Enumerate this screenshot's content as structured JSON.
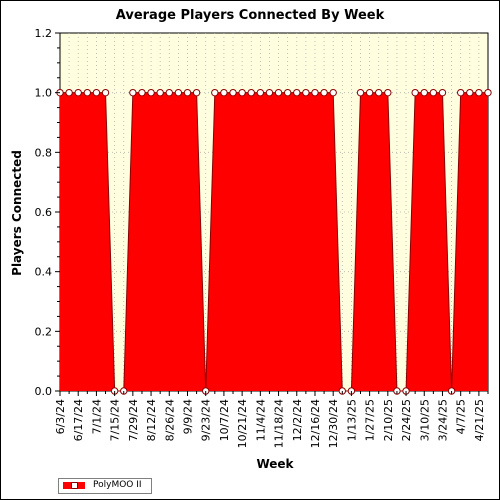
{
  "chart_data": {
    "type": "area",
    "title": "Average Players Connected By Week",
    "xlabel": "Week",
    "ylabel": "Players Connected",
    "ylim": [
      0,
      1.2
    ],
    "y_ticks": [
      "0.0",
      "0.2",
      "0.4",
      "0.6",
      "0.8",
      "1.0",
      "1.2"
    ],
    "x_tick_labels": [
      "6/3/24",
      "6/17/24",
      "7/1/24",
      "7/15/24",
      "7/29/24",
      "8/12/24",
      "8/26/24",
      "9/9/24",
      "9/23/24",
      "10/7/24",
      "10/21/24",
      "11/4/24",
      "11/18/24",
      "12/2/24",
      "12/16/24",
      "12/30/24",
      "1/13/25",
      "1/27/25",
      "2/10/25",
      "2/24/25",
      "3/10/25",
      "3/24/25",
      "4/7/25",
      "4/21/25"
    ],
    "grid": true,
    "legend_placement": "bottom-left",
    "background_color": "#ffffe0",
    "series": [
      {
        "name": "PolyMOO II",
        "color": "#ff0000",
        "line_color": "#8b0000",
        "x": [
          "6/3/24",
          "6/10/24",
          "6/17/24",
          "6/24/24",
          "7/1/24",
          "7/8/24",
          "7/15/24",
          "7/22/24",
          "7/29/24",
          "8/5/24",
          "8/12/24",
          "8/19/24",
          "8/26/24",
          "9/2/24",
          "9/9/24",
          "9/16/24",
          "9/23/24",
          "9/30/24",
          "10/7/24",
          "10/14/24",
          "10/21/24",
          "10/28/24",
          "11/4/24",
          "11/11/24",
          "11/18/24",
          "11/25/24",
          "12/2/24",
          "12/9/24",
          "12/16/24",
          "12/23/24",
          "12/30/24",
          "1/6/25",
          "1/13/25",
          "1/20/25",
          "1/27/25",
          "2/3/25",
          "2/10/25",
          "2/17/25",
          "2/24/25",
          "3/3/25",
          "3/10/25",
          "3/17/25",
          "3/24/25",
          "3/31/25",
          "4/7/25",
          "4/14/25",
          "4/21/25",
          "4/28/25"
        ],
        "values": [
          1,
          1,
          1,
          1,
          1,
          1,
          0,
          0,
          1,
          1,
          1,
          1,
          1,
          1,
          1,
          1,
          0,
          1,
          1,
          1,
          1,
          1,
          1,
          1,
          1,
          1,
          1,
          1,
          1,
          1,
          1,
          0,
          0,
          1,
          1,
          1,
          1,
          0,
          0,
          1,
          1,
          1,
          1,
          0,
          1,
          1,
          1,
          1
        ]
      }
    ]
  }
}
